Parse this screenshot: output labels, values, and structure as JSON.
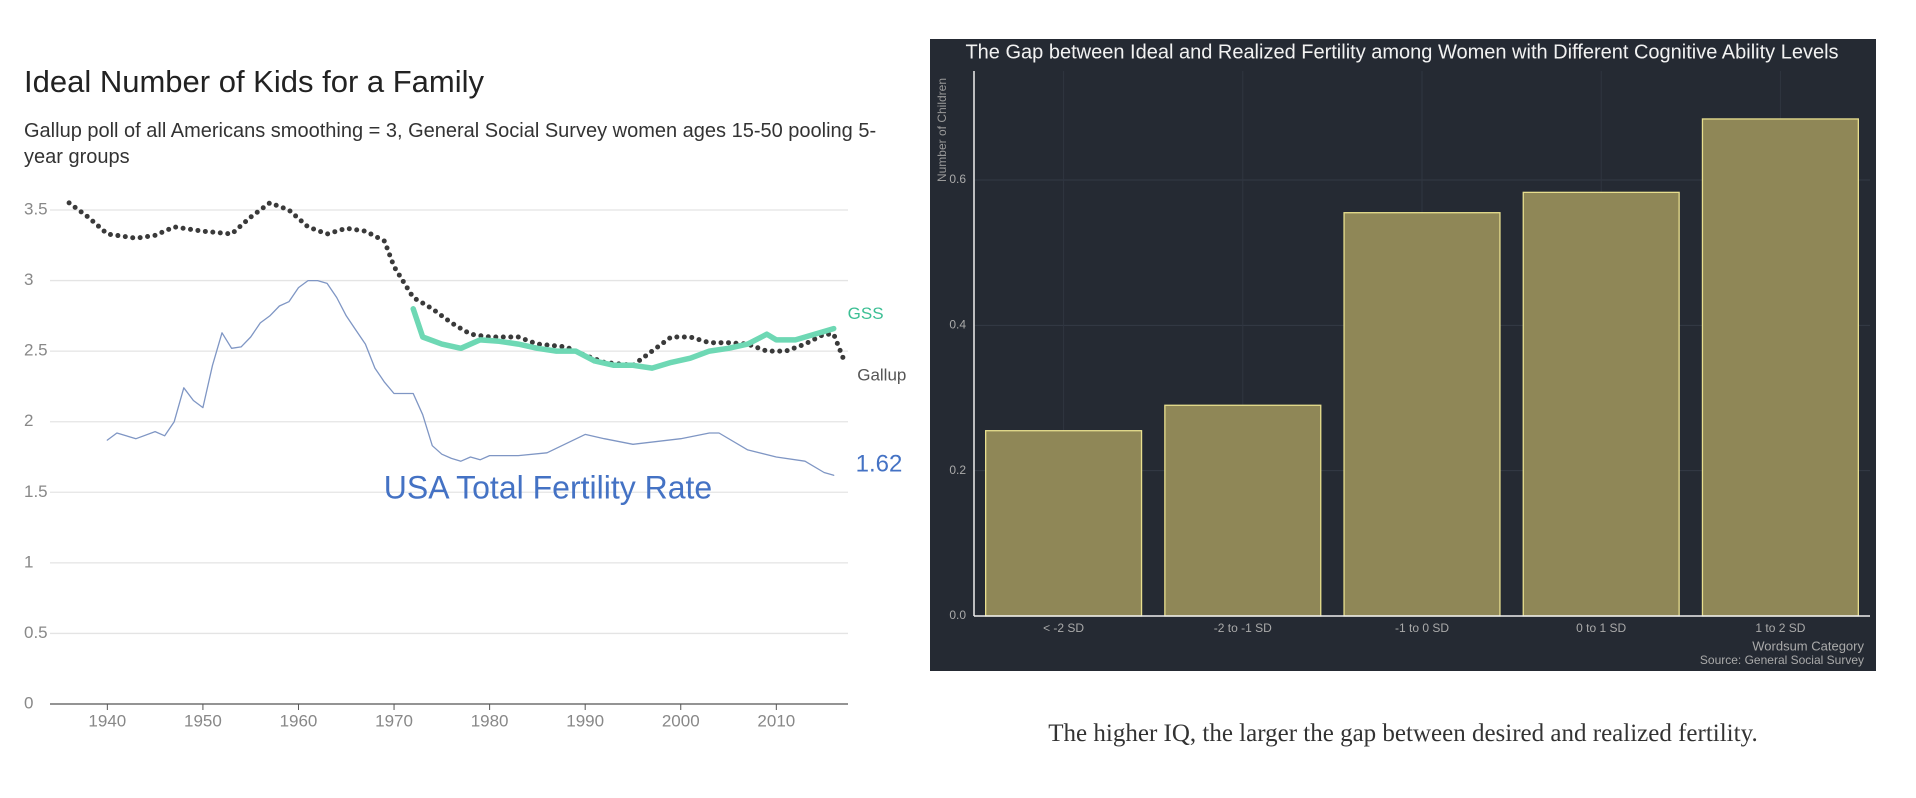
{
  "chart_data": [
    {
      "type": "line",
      "title": "Ideal Number of Kids for a Family",
      "subtitle": "Gallup poll of all Americans smoothing = 3, General Social Survey women ages 15-50 pooling 5-year groups",
      "xlim": [
        1934,
        2017.5
      ],
      "xticks": [
        1940,
        1950,
        1960,
        1970,
        1980,
        1990,
        2000,
        2010
      ],
      "ylim": [
        0,
        3.5
      ],
      "yticks": [
        0,
        0.5,
        1,
        1.5,
        2,
        2.5,
        3,
        3.5
      ],
      "grid": true,
      "series": [
        {
          "name": "Gallup",
          "color": "#3a3a3a",
          "line_style": "dotted",
          "x": [
            1936,
            1938,
            1940,
            1943,
            1945,
            1947,
            1950,
            1953,
            1955,
            1957,
            1959,
            1961,
            1963,
            1965,
            1967,
            1969,
            1970,
            1972,
            1974,
            1976,
            1978,
            1980,
            1983,
            1985,
            1988,
            1990,
            1992,
            1995,
            1997,
            1999,
            2001,
            2003,
            2005,
            2007,
            2009,
            2011,
            2013,
            2015,
            2016,
            2017
          ],
          "values": [
            3.55,
            3.45,
            3.33,
            3.3,
            3.32,
            3.38,
            3.35,
            3.33,
            3.45,
            3.55,
            3.5,
            3.38,
            3.33,
            3.37,
            3.35,
            3.28,
            3.1,
            2.88,
            2.8,
            2.7,
            2.62,
            2.6,
            2.6,
            2.55,
            2.53,
            2.47,
            2.42,
            2.4,
            2.5,
            2.6,
            2.6,
            2.56,
            2.56,
            2.55,
            2.5,
            2.5,
            2.55,
            2.62,
            2.62,
            2.45
          ]
        },
        {
          "name": "GSS",
          "color": "#6ed8b4",
          "line_style": "thick",
          "x": [
            1972,
            1973,
            1975,
            1977,
            1979,
            1981,
            1983,
            1985,
            1987,
            1989,
            1991,
            1993,
            1995,
            1997,
            1999,
            2001,
            2003,
            2005,
            2007,
            2009,
            2010,
            2012,
            2014,
            2016
          ],
          "values": [
            2.8,
            2.6,
            2.55,
            2.52,
            2.58,
            2.57,
            2.55,
            2.52,
            2.5,
            2.5,
            2.43,
            2.4,
            2.4,
            2.38,
            2.42,
            2.45,
            2.5,
            2.52,
            2.55,
            2.62,
            2.58,
            2.58,
            2.62,
            2.66
          ]
        },
        {
          "name": "USA Total Fertility Rate",
          "color": "#7f96c4",
          "line_style": "thin",
          "label_color": "#4472c4",
          "end_label": "1.62",
          "x": [
            1940,
            1941,
            1943,
            1945,
            1946,
            1947,
            1948,
            1949,
            1950,
            1951,
            1952,
            1953,
            1954,
            1955,
            1956,
            1957,
            1958,
            1959,
            1960,
            1961,
            1962,
            1963,
            1964,
            1965,
            1966,
            1967,
            1968,
            1969,
            1970,
            1971,
            1972,
            1973,
            1974,
            1975,
            1976,
            1977,
            1978,
            1979,
            1980,
            1983,
            1986,
            1990,
            1992,
            1995,
            2000,
            2003,
            2004,
            2007,
            2010,
            2013,
            2015,
            2016
          ],
          "values": [
            1.87,
            1.92,
            1.88,
            1.93,
            1.9,
            2.0,
            2.24,
            2.15,
            2.1,
            2.4,
            2.63,
            2.52,
            2.53,
            2.6,
            2.7,
            2.75,
            2.82,
            2.85,
            2.95,
            3.0,
            3.0,
            2.98,
            2.88,
            2.75,
            2.65,
            2.55,
            2.38,
            2.28,
            2.2,
            2.2,
            2.2,
            2.05,
            1.83,
            1.77,
            1.74,
            1.72,
            1.75,
            1.73,
            1.76,
            1.76,
            1.78,
            1.91,
            1.88,
            1.84,
            1.88,
            1.92,
            1.92,
            1.8,
            1.75,
            1.72,
            1.64,
            1.62
          ]
        }
      ]
    },
    {
      "type": "bar",
      "title": "The Gap between Ideal and Realized Fertility among Women with Different Cognitive Ability Levels",
      "y_label": "Number of Children",
      "x_label": "Wordsum Category",
      "source": "Source: General Social Survey",
      "categories": [
        "< -2 SD",
        "-2 to -1 SD",
        "-1 to 0 SD",
        "0 to 1 SD",
        "1 to 2 SD"
      ],
      "values": [
        0.255,
        0.29,
        0.555,
        0.583,
        0.684
      ],
      "color": "#8f8757",
      "ylim": [
        0,
        0.75
      ],
      "yticks": [
        {
          "value": 0,
          "label": "0.0"
        },
        0.2,
        0.4,
        0.6
      ],
      "grid": true,
      "caption": "The higher IQ, the larger the gap between desired and realized fertility."
    }
  ]
}
